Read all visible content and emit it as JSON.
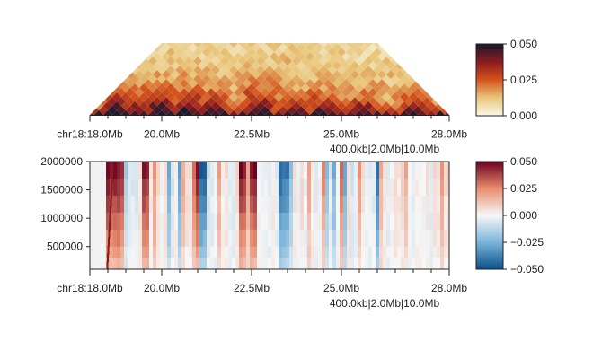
{
  "chart_data": [
    {
      "type": "heatmap",
      "subtype": "triangular-contact-map",
      "title": "",
      "x_unit": "Mb",
      "x_range": [
        18.0,
        28.0
      ],
      "x_ticks": [
        18.0,
        20.0,
        22.5,
        25.0,
        28.0
      ],
      "x_tick_labels": [
        "chr18:18.0Mb",
        "20.0Mb",
        "22.5Mb",
        "25.0Mb",
        "28.0Mb"
      ],
      "x_sublabel": "400.0kb|2.0Mb|10.0Mb",
      "colorbar": {
        "colormap": "white-yellow-orange-red-black",
        "range": [
          0.0,
          0.05
        ],
        "ticks": [
          0.0,
          0.025,
          0.05
        ],
        "tick_labels": [
          "0.000",
          "0.025",
          "0.050"
        ]
      }
    },
    {
      "type": "heatmap",
      "subtype": "multi-scale-track",
      "title": "",
      "x_unit": "Mb",
      "x_range": [
        18.0,
        28.0
      ],
      "x_ticks": [
        18.0,
        20.0,
        22.5,
        25.0,
        28.0
      ],
      "x_tick_labels": [
        "chr18:18.0Mb",
        "20.0Mb",
        "22.5Mb",
        "25.0Mb",
        "28.0Mb"
      ],
      "x_sublabel": "400.0kb|2.0Mb|10.0Mb",
      "y_range": [
        100000,
        2000000
      ],
      "y_ticks": [
        500000,
        1000000,
        1500000,
        2000000
      ],
      "y_tick_labels": [
        "500000",
        "1000000",
        "1500000",
        "2000000"
      ],
      "strong_positive_columns_mb": [
        18.9,
        19.5,
        21.0,
        22.2,
        22.5
      ],
      "strong_negative_columns_mb": [
        20.5,
        21.1,
        23.3,
        23.5,
        26.0
      ],
      "colorbar": {
        "colormap": "diverging-blue-white-red",
        "range": [
          -0.05,
          0.05
        ],
        "ticks": [
          -0.05,
          -0.025,
          0.0,
          0.025,
          0.05
        ],
        "tick_labels": [
          "−0.050",
          "−0.025",
          "0.000",
          "0.025",
          "0.050"
        ]
      }
    }
  ]
}
